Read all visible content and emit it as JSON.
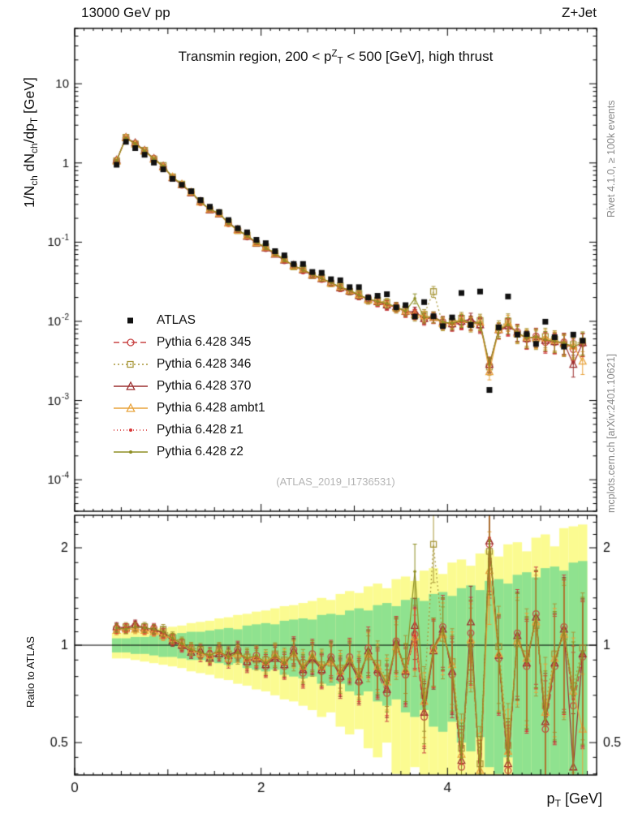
{
  "header": {
    "left": "13000 GeV pp",
    "right": "Z+Jet"
  },
  "titles": {
    "panel_segments": [
      {
        "t": "Transmin region, 200 < p"
      },
      {
        "t": "Z",
        "s": "sup"
      },
      {
        "t": "T",
        "s": "sub"
      },
      {
        "t": " < 500 [GeV], high thrust"
      }
    ]
  },
  "watermark": "(ATLAS_2019_I1736531)",
  "side_notes": {
    "top": "Rivet 4.1.0, ≥ 100k events",
    "bottom": "mcplots.cern.ch [arXiv:2401.10621]"
  },
  "axes": {
    "x": {
      "min": 0,
      "max": 5.6,
      "major_ticks": [
        0,
        2,
        4
      ],
      "tick_labels": [
        "0",
        "2",
        "4"
      ],
      "label_segments": [
        {
          "t": "p"
        },
        {
          "t": "T",
          "s": "sub"
        },
        {
          "t": " [GeV]"
        }
      ]
    },
    "y_top": {
      "scale": "log",
      "min": 4e-05,
      "max": 50,
      "tick_exponents": [
        1,
        0,
        -1,
        -2,
        -3,
        -4
      ],
      "label_segments": [
        {
          "t": "1/N"
        },
        {
          "t": "ch",
          "s": "sub"
        },
        {
          "t": " dN"
        },
        {
          "t": "ch",
          "s": "sub"
        },
        {
          "t": "/dp"
        },
        {
          "t": "T",
          "s": "sub"
        },
        {
          "t": " [GeV]"
        }
      ]
    },
    "y_ratio": {
      "scale": "log",
      "min": 0.397,
      "max": 2.52,
      "tick_values": [
        2,
        1,
        0.5
      ],
      "tick_labels": [
        "2",
        "1",
        "0.5"
      ],
      "label": "Ratio to ATLAS"
    }
  },
  "chart_data": {
    "type": "line",
    "title": "Transmin region, 200 < pT(Z) < 500 [GeV], high thrust",
    "xlabel": "pT [GeV]",
    "ylabel": "1/Nch dNch/dpT [GeV]",
    "ratio_ylabel": "Ratio to ATLAS",
    "note": "MC series y-values in the top panel = atlas[i] * series.ratio[i]; bottom panel shows series.ratio",
    "x": [
      0.45,
      0.55,
      0.65,
      0.75,
      0.85,
      0.95,
      1.05,
      1.15,
      1.25,
      1.35,
      1.45,
      1.55,
      1.65,
      1.75,
      1.85,
      1.95,
      2.05,
      2.15,
      2.25,
      2.35,
      2.45,
      2.55,
      2.65,
      2.75,
      2.85,
      2.95,
      3.05,
      3.15,
      3.25,
      3.35,
      3.45,
      3.55,
      3.65,
      3.75,
      3.85,
      3.95,
      4.05,
      4.15,
      4.25,
      4.35,
      4.45,
      4.55,
      4.65,
      4.75,
      4.85,
      4.95,
      5.05,
      5.15,
      5.25,
      5.35,
      5.45
    ],
    "atlas_label": "ATLAS",
    "atlas_color": "#111111",
    "atlas": [
      0.95,
      1.85,
      1.54,
      1.27,
      1.01,
      0.83,
      0.63,
      0.53,
      0.44,
      0.34,
      0.28,
      0.24,
      0.19,
      0.15,
      0.133,
      0.107,
      0.097,
      0.077,
      0.068,
      0.053,
      0.053,
      0.042,
      0.041,
      0.034,
      0.033,
      0.027,
      0.027,
      0.02,
      0.021,
      0.022,
      0.015,
      0.016,
      0.0115,
      0.0175,
      0.0116,
      0.0087,
      0.0112,
      0.0228,
      0.009,
      0.0238,
      0.00136,
      0.0084,
      0.0206,
      0.0068,
      0.0069,
      0.0052,
      0.0099,
      0.0063,
      0.0048,
      0.0068,
      0.0057
    ],
    "series": [
      {
        "name": "py6-345",
        "label": "Pythia 6.428 345",
        "color": "#c84444",
        "line": "dashed",
        "marker": "circle-open",
        "ratio": [
          1.13,
          1.12,
          1.15,
          1.12,
          1.13,
          1.08,
          1.04,
          0.99,
          0.96,
          0.93,
          0.94,
          0.96,
          0.9,
          0.97,
          0.88,
          0.93,
          0.86,
          0.93,
          0.86,
          0.97,
          0.82,
          0.94,
          0.83,
          0.92,
          0.79,
          0.92,
          0.77,
          0.98,
          0.82,
          0.71,
          1.03,
          0.81,
          1.08,
          0.6,
          0.98,
          1.14,
          0.81,
          0.42,
          1.09,
          0.37,
          2.05,
          0.91,
          0.41,
          1.09,
          0.86,
          1.25,
          0.55,
          0.86,
          1.14,
          0.65,
          0.92
        ]
      },
      {
        "name": "py6-346",
        "label": "Pythia 6.428 346",
        "color": "#a8973a",
        "line": "dotted",
        "marker": "square-open",
        "ratio": [
          1.12,
          1.14,
          1.13,
          1.14,
          1.11,
          1.12,
          1.06,
          1.02,
          0.98,
          0.97,
          0.92,
          0.97,
          0.94,
          0.93,
          0.92,
          0.9,
          0.9,
          0.94,
          0.9,
          0.92,
          0.88,
          0.9,
          0.87,
          0.88,
          0.85,
          0.88,
          0.83,
          0.92,
          0.88,
          0.79,
          0.97,
          0.89,
          1.02,
          0.7,
          2.05,
          1.05,
          0.89,
          0.48,
          1.01,
          0.43,
          1.95,
          0.99,
          0.49,
          1.01,
          0.94,
          1.15,
          0.65,
          0.94,
          1.06,
          0.75,
          0.98
        ]
      },
      {
        "name": "py6-370",
        "label": "Pythia 6.428 370",
        "color": "#9c2f2f",
        "line": "solid",
        "marker": "triangle-open",
        "ratio": [
          1.14,
          1.13,
          1.16,
          1.13,
          1.12,
          1.09,
          1.03,
          1.0,
          0.95,
          0.96,
          0.91,
          0.94,
          0.93,
          0.96,
          0.89,
          0.91,
          0.87,
          0.91,
          0.87,
          0.96,
          0.84,
          0.91,
          0.84,
          0.91,
          0.8,
          0.89,
          0.78,
          0.96,
          0.84,
          0.73,
          1.02,
          0.83,
          1.15,
          0.62,
          0.96,
          1.12,
          0.83,
          0.44,
          1.18,
          0.38,
          2.1,
          0.93,
          0.43,
          1.07,
          0.88,
          1.22,
          0.58,
          0.88,
          1.12,
          0.42,
          0.94
        ]
      },
      {
        "name": "py6-ambt1",
        "label": "Pythia 6.428 ambt1",
        "color": "#e8a33c",
        "line": "solid",
        "marker": "triangle-open",
        "ratio": [
          1.11,
          1.12,
          1.12,
          1.11,
          1.1,
          1.07,
          1.05,
          1.01,
          0.97,
          0.94,
          0.93,
          0.96,
          0.91,
          0.94,
          0.91,
          0.92,
          0.89,
          0.93,
          0.89,
          0.94,
          0.86,
          0.93,
          0.86,
          0.89,
          0.83,
          0.91,
          0.81,
          0.94,
          0.86,
          0.77,
          0.99,
          0.84,
          1.06,
          0.67,
          0.97,
          1.08,
          0.87,
          0.46,
          1.04,
          0.41,
          1.7,
          0.94,
          0.47,
          1.03,
          0.91,
          1.18,
          0.62,
          0.91,
          1.08,
          0.72,
          0.55
        ]
      },
      {
        "name": "py6-z1",
        "label": "Pythia 6.428 z1",
        "color": "#d93535",
        "line": "fine-dotted",
        "marker": "dot",
        "ratio": [
          1.12,
          1.13,
          1.14,
          1.12,
          1.11,
          1.09,
          1.04,
          1.0,
          0.96,
          0.95,
          0.92,
          0.95,
          0.92,
          0.95,
          0.9,
          0.92,
          0.87,
          0.92,
          0.87,
          0.95,
          0.83,
          0.92,
          0.84,
          0.9,
          0.81,
          0.9,
          0.79,
          0.95,
          0.83,
          0.74,
          1.01,
          0.82,
          1.07,
          0.63,
          0.97,
          1.11,
          0.84,
          0.43,
          1.06,
          0.39,
          2.15,
          0.92,
          0.42,
          1.06,
          0.87,
          1.21,
          0.57,
          0.87,
          1.1,
          0.68,
          0.93
        ]
      },
      {
        "name": "py6-z2",
        "label": "Pythia 6.428 z2",
        "color": "#8e8e23",
        "line": "solid",
        "marker": "dot",
        "ratio": [
          1.13,
          1.12,
          1.14,
          1.13,
          1.12,
          1.1,
          1.05,
          1.01,
          0.97,
          0.95,
          0.93,
          0.96,
          0.92,
          0.95,
          0.91,
          0.93,
          0.88,
          0.93,
          0.88,
          0.95,
          0.85,
          0.93,
          0.85,
          0.91,
          0.82,
          0.91,
          0.8,
          0.96,
          0.85,
          0.76,
          1.02,
          0.84,
          1.69,
          0.64,
          0.98,
          1.12,
          0.85,
          0.45,
          1.07,
          0.4,
          2.1,
          0.93,
          0.44,
          1.06,
          0.89,
          1.22,
          0.59,
          0.89,
          1.11,
          0.7,
          0.95
        ]
      }
    ],
    "bands": {
      "green_color": "#8fe28f",
      "yellow_color": "#fbfb91",
      "green_halfwidth": [
        0.05,
        0.05,
        0.06,
        0.06,
        0.07,
        0.08,
        0.08,
        0.09,
        0.1,
        0.1,
        0.11,
        0.12,
        0.13,
        0.12,
        0.15,
        0.16,
        0.17,
        0.16,
        0.19,
        0.2,
        0.21,
        0.2,
        0.24,
        0.25,
        0.24,
        0.28,
        0.3,
        0.28,
        0.33,
        0.35,
        0.32,
        0.38,
        0.4,
        0.37,
        0.44,
        0.46,
        0.42,
        0.5,
        0.53,
        0.48,
        0.58,
        0.6,
        0.55,
        0.65,
        0.68,
        0.62,
        0.73,
        0.75,
        0.7,
        0.8,
        0.82
      ],
      "yellow_halfwidth": [
        0.09,
        0.09,
        0.1,
        0.11,
        0.12,
        0.13,
        0.14,
        0.15,
        0.17,
        0.18,
        0.19,
        0.21,
        0.22,
        0.24,
        0.25,
        0.27,
        0.28,
        0.3,
        0.32,
        0.33,
        0.35,
        0.37,
        0.4,
        0.38,
        0.44,
        0.47,
        0.45,
        0.52,
        0.55,
        0.5,
        0.6,
        0.63,
        0.58,
        0.7,
        0.73,
        0.66,
        0.8,
        0.84,
        0.76,
        0.92,
        0.97,
        0.88,
        1.05,
        1.08,
        0.95,
        1.15,
        1.2,
        1.02,
        1.3,
        1.33,
        1.36
      ]
    },
    "error_model": {
      "top": [
        0.02,
        0.3
      ],
      "ratio": [
        0.03,
        0.45
      ]
    },
    "reference_line": 1
  }
}
